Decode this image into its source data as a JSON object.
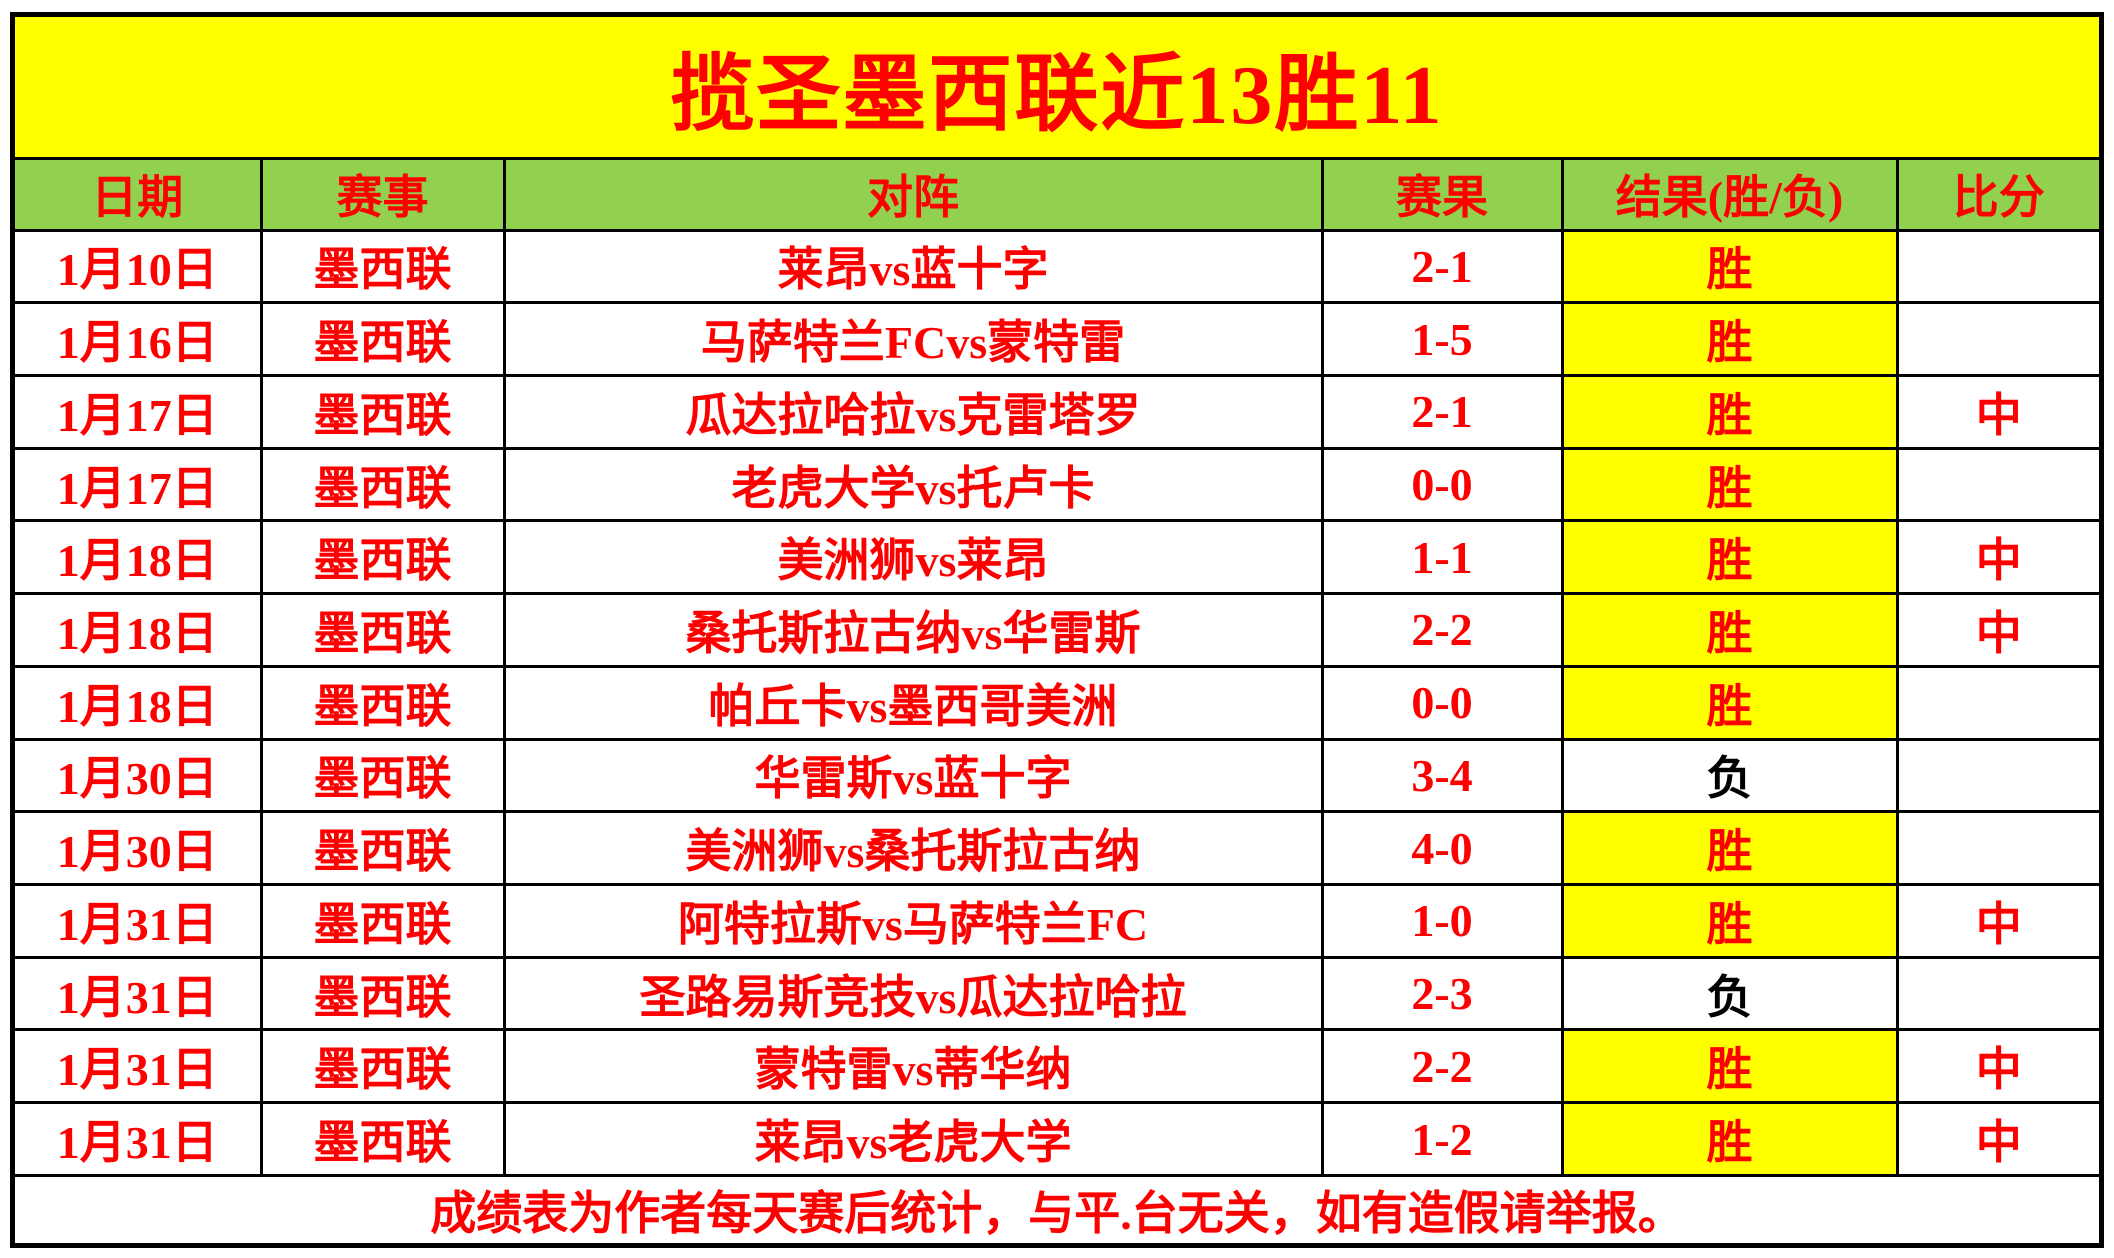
{
  "title": "揽圣墨西联近13胜11",
  "columns": [
    "日期",
    "赛事",
    "对阵",
    "赛果",
    "结果(胜/负)",
    "比分"
  ],
  "rows": [
    {
      "date": "1月10日",
      "league": "墨西联",
      "match": "莱昂vs蓝十字",
      "score": "2-1",
      "result": "胜",
      "result_type": "win",
      "hit": ""
    },
    {
      "date": "1月16日",
      "league": "墨西联",
      "match": "马萨特兰FCvs蒙特雷",
      "score": "1-5",
      "result": "胜",
      "result_type": "win",
      "hit": ""
    },
    {
      "date": "1月17日",
      "league": "墨西联",
      "match": "瓜达拉哈拉vs克雷塔罗",
      "score": "2-1",
      "result": "胜",
      "result_type": "win",
      "hit": "中"
    },
    {
      "date": "1月17日",
      "league": "墨西联",
      "match": "老虎大学vs托卢卡",
      "score": "0-0",
      "result": "胜",
      "result_type": "win",
      "hit": ""
    },
    {
      "date": "1月18日",
      "league": "墨西联",
      "match": "美洲狮vs莱昂",
      "score": "1-1",
      "result": "胜",
      "result_type": "win",
      "hit": "中"
    },
    {
      "date": "1月18日",
      "league": "墨西联",
      "match": "桑托斯拉古纳vs华雷斯",
      "score": "2-2",
      "result": "胜",
      "result_type": "win",
      "hit": "中"
    },
    {
      "date": "1月18日",
      "league": "墨西联",
      "match": "帕丘卡vs墨西哥美洲",
      "score": "0-0",
      "result": "胜",
      "result_type": "win",
      "hit": ""
    },
    {
      "date": "1月30日",
      "league": "墨西联",
      "match": "华雷斯vs蓝十字",
      "score": "3-4",
      "result": "负",
      "result_type": "loss",
      "hit": ""
    },
    {
      "date": "1月30日",
      "league": "墨西联",
      "match": "美洲狮vs桑托斯拉古纳",
      "score": "4-0",
      "result": "胜",
      "result_type": "win",
      "hit": ""
    },
    {
      "date": "1月31日",
      "league": "墨西联",
      "match": "阿特拉斯vs马萨特兰FC",
      "score": "1-0",
      "result": "胜",
      "result_type": "win",
      "hit": "中"
    },
    {
      "date": "1月31日",
      "league": "墨西联",
      "match": "圣路易斯竞技vs瓜达拉哈拉",
      "score": "2-3",
      "result": "负",
      "result_type": "loss",
      "hit": ""
    },
    {
      "date": "1月31日",
      "league": "墨西联",
      "match": "蒙特雷vs蒂华纳",
      "score": "2-2",
      "result": "胜",
      "result_type": "win",
      "hit": "中"
    },
    {
      "date": "1月31日",
      "league": "墨西联",
      "match": "莱昂vs老虎大学",
      "score": "1-2",
      "result": "胜",
      "result_type": "win",
      "hit": "中"
    }
  ],
  "footer": "成绩表为作者每天赛后统计，与平.台无关，如有造假请举报。",
  "colors": {
    "banner_bg": "#FFFF00",
    "header_bg": "#92D050",
    "win_bg": "#FFFF00",
    "red_text": "#FF0000",
    "loss_text": "#000000",
    "border": "#000000"
  }
}
